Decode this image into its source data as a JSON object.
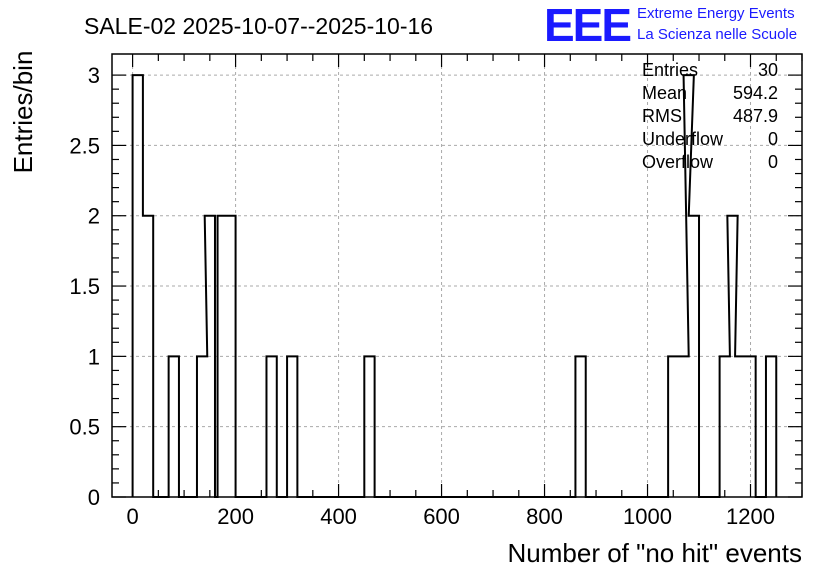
{
  "header": {
    "title": "SALE-02 2025-10-07--2025-10-16"
  },
  "logo": {
    "mark": "EEE",
    "line1": "Extreme Energy Events",
    "line2": "La Scienza nelle Scuole",
    "color": "#1a1aff"
  },
  "stats": {
    "rows": [
      {
        "label": "Entries",
        "value": "30"
      },
      {
        "label": "Mean",
        "value": "594.2"
      },
      {
        "label": "RMS",
        "value": "487.9"
      },
      {
        "label": "Underflow",
        "value": "0"
      },
      {
        "label": "Overflow",
        "value": "0"
      }
    ]
  },
  "chart_data": {
    "type": "histogram",
    "title": "SALE-02 2025-10-07--2025-10-16",
    "xlabel": "Number of \"no hit\" events",
    "ylabel": "Entries/bin",
    "xlim": [
      -40,
      1300
    ],
    "ylim": [
      0,
      3.15
    ],
    "grid": true,
    "legend": "top-right statistics box",
    "bin_width": 20,
    "x_ticks": [
      0,
      200,
      400,
      600,
      800,
      1000,
      1200
    ],
    "y_ticks": [
      0,
      0.5,
      1,
      1.5,
      2,
      2.5,
      3
    ],
    "x_tick_labels": [
      "0",
      "200",
      "400",
      "600",
      "800",
      "1000",
      "1200"
    ],
    "y_tick_labels": [
      "0",
      "0.5",
      "1",
      "1.5",
      "2",
      "2.5",
      "3"
    ],
    "bins": [
      {
        "x": 0,
        "count": 3
      },
      {
        "x": 20,
        "count": 2
      },
      {
        "x": 70,
        "count": 1
      },
      {
        "x": 125,
        "count": 1
      },
      {
        "x": 140,
        "count": 2
      },
      {
        "x": 165,
        "count": 2
      },
      {
        "x": 180,
        "count": 2
      },
      {
        "x": 260,
        "count": 1
      },
      {
        "x": 300,
        "count": 1
      },
      {
        "x": 450,
        "count": 1
      },
      {
        "x": 860,
        "count": 1
      },
      {
        "x": 1040,
        "count": 1
      },
      {
        "x": 1060,
        "count": 1
      },
      {
        "x": 1070,
        "count": 3
      },
      {
        "x": 1080,
        "count": 2
      },
      {
        "x": 1140,
        "count": 1
      },
      {
        "x": 1155,
        "count": 2
      },
      {
        "x": 1170,
        "count": 1
      },
      {
        "x": 1190,
        "count": 1
      },
      {
        "x": 1230,
        "count": 1
      }
    ],
    "line_color": "#000000",
    "grid_color": "#aaaaaa"
  }
}
